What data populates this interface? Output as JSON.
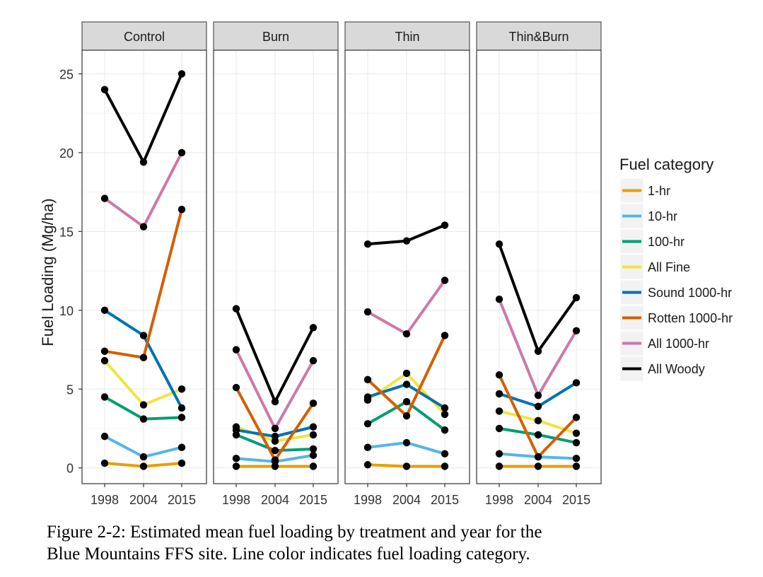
{
  "chart_data": {
    "type": "line",
    "facet_type": "facet_wrap",
    "panels": [
      "Control",
      "Burn",
      "Thin",
      "Thin&Burn"
    ],
    "x": [
      "1998",
      "2004",
      "2015"
    ],
    "ylabel": "Fuel Loading (Mg/ha)",
    "xlabel": "",
    "ylim": [
      -1,
      26.5
    ],
    "yticks": [
      "0",
      "5",
      "10",
      "15",
      "20",
      "25"
    ],
    "grid": true,
    "legend": {
      "title": "Fuel category",
      "position": "right"
    },
    "series": [
      {
        "name": "1-hr",
        "color": "#E69F00",
        "values": {
          "Control": [
            0.3,
            0.1,
            0.3
          ],
          "Burn": [
            0.1,
            0.1,
            0.1
          ],
          "Thin": [
            0.2,
            0.1,
            0.1
          ],
          "Thin&Burn": [
            0.1,
            0.1,
            0.1
          ]
        }
      },
      {
        "name": "10-hr",
        "color": "#56B4E9",
        "values": {
          "Control": [
            2.0,
            0.7,
            1.3
          ],
          "Burn": [
            0.6,
            0.4,
            0.8
          ],
          "Thin": [
            1.3,
            1.6,
            0.9
          ],
          "Thin&Burn": [
            0.9,
            0.7,
            0.6
          ]
        }
      },
      {
        "name": "100-hr",
        "color": "#009E73",
        "values": {
          "Control": [
            4.5,
            3.1,
            3.2
          ],
          "Burn": [
            2.1,
            1.1,
            1.2
          ],
          "Thin": [
            2.8,
            4.2,
            2.4
          ],
          "Thin&Burn": [
            2.5,
            2.1,
            1.6
          ]
        }
      },
      {
        "name": "All Fine",
        "color": "#F0E442",
        "values": {
          "Control": [
            6.8,
            4.0,
            5.0
          ],
          "Burn": [
            2.6,
            1.7,
            2.1
          ],
          "Thin": [
            4.3,
            6.0,
            3.4
          ],
          "Thin&Burn": [
            3.6,
            3.0,
            2.2
          ]
        }
      },
      {
        "name": "Sound 1000-hr",
        "color": "#0072B2",
        "values": {
          "Control": [
            10.0,
            8.4,
            3.8
          ],
          "Burn": [
            2.4,
            2.0,
            2.6
          ],
          "Thin": [
            4.5,
            5.3,
            3.8
          ],
          "Thin&Burn": [
            4.7,
            3.9,
            5.4
          ]
        }
      },
      {
        "name": "Rotten 1000-hr",
        "color": "#D55E00",
        "values": {
          "Control": [
            7.4,
            7.0,
            16.4
          ],
          "Burn": [
            5.1,
            0.5,
            4.1
          ],
          "Thin": [
            5.6,
            3.3,
            8.4
          ],
          "Thin&Burn": [
            5.9,
            0.7,
            3.2
          ]
        }
      },
      {
        "name": "All 1000-hr",
        "color": "#CC79A7",
        "values": {
          "Control": [
            17.1,
            15.3,
            20.0
          ],
          "Burn": [
            7.5,
            2.5,
            6.8
          ],
          "Thin": [
            9.9,
            8.5,
            11.9
          ],
          "Thin&Burn": [
            10.7,
            4.6,
            8.7
          ]
        }
      },
      {
        "name": "All Woody",
        "color": "#000000",
        "values": {
          "Control": [
            24.0,
            19.4,
            25.0
          ],
          "Burn": [
            10.1,
            4.2,
            8.9
          ],
          "Thin": [
            14.2,
            14.4,
            15.4
          ],
          "Thin&Burn": [
            14.2,
            7.4,
            10.8
          ]
        }
      }
    ]
  },
  "caption": {
    "line1": "Figure 2-2: Estimated mean fuel loading by treatment and year for the",
    "line2": "Blue Mountains FFS site. Line color indicates fuel loading category."
  }
}
